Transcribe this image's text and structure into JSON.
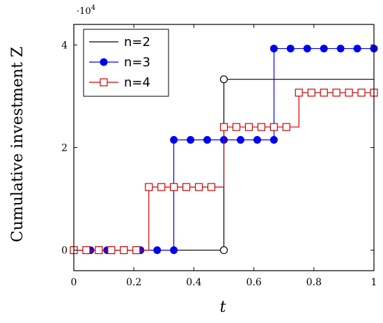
{
  "chart_data": {
    "type": "line",
    "step": "right",
    "xlabel": "t",
    "ylabel": "Cumulative investment Z",
    "y_multiplier": "·10",
    "y_multiplier_exp": "4",
    "xlim": [
      0,
      1
    ],
    "ylim": [
      -0.4,
      4.4
    ],
    "x_ticks": [
      {
        "value": 0,
        "label": "0"
      },
      {
        "value": 0.2,
        "label": "0.2"
      },
      {
        "value": 0.4,
        "label": "0.4"
      },
      {
        "value": 0.6,
        "label": "0.6"
      },
      {
        "value": 0.8,
        "label": "0.8"
      },
      {
        "value": 1,
        "label": "1"
      }
    ],
    "y_ticks": [
      {
        "value": 0,
        "label": "0"
      },
      {
        "value": 2,
        "label": "2"
      },
      {
        "value": 4,
        "label": "4"
      }
    ],
    "legend_position": "top-left",
    "series": [
      {
        "name": "n=2",
        "color": "#000000",
        "marker": "open-circle",
        "x": [
          0,
          0.5,
          0.5,
          1
        ],
        "y": [
          0,
          0,
          3.33,
          3.33
        ],
        "marker_x": [
          0.5,
          0.5
        ],
        "marker_y": [
          0,
          3.33
        ]
      },
      {
        "name": "n=3",
        "color": "#0000ee",
        "marker": "filled-circle",
        "x": [
          0,
          0.333,
          0.333,
          0.667,
          0.667,
          1
        ],
        "y": [
          0,
          0,
          2.15,
          2.15,
          3.93,
          3.93
        ],
        "marker_x": [
          0,
          0.0556,
          0.1111,
          0.1667,
          0.2222,
          0.2778,
          0.3333,
          0.3333,
          0.3889,
          0.4444,
          0.5,
          0.5556,
          0.6111,
          0.6667,
          0.6667,
          0.7222,
          0.7778,
          0.8333,
          0.8889,
          0.9444,
          1
        ],
        "marker_y": [
          0,
          0,
          0,
          0,
          0,
          0,
          0,
          2.15,
          2.15,
          2.15,
          2.15,
          2.15,
          2.15,
          2.15,
          3.93,
          3.93,
          3.93,
          3.93,
          3.93,
          3.93,
          3.93
        ]
      },
      {
        "name": "n=4",
        "color": "#cc0000",
        "marker": "open-square",
        "x": [
          0,
          0.25,
          0.25,
          0.5,
          0.5,
          0.75,
          0.75,
          1
        ],
        "y": [
          0,
          0,
          1.23,
          1.23,
          2.4,
          2.4,
          3.07,
          3.07
        ],
        "marker_x": [
          0,
          0.0417,
          0.0833,
          0.125,
          0.1667,
          0.2083,
          0.25,
          0.2917,
          0.3333,
          0.375,
          0.4167,
          0.4583,
          0.5,
          0.5417,
          0.5833,
          0.625,
          0.6667,
          0.7083,
          0.75,
          0.7917,
          0.8333,
          0.875,
          0.9167,
          0.9583,
          1
        ],
        "marker_y": [
          0,
          0,
          0,
          0,
          0,
          0,
          1.23,
          1.23,
          1.23,
          1.23,
          1.23,
          1.23,
          2.4,
          2.4,
          2.4,
          2.4,
          2.4,
          2.4,
          3.07,
          3.07,
          3.07,
          3.07,
          3.07,
          3.07,
          3.07
        ]
      }
    ]
  }
}
